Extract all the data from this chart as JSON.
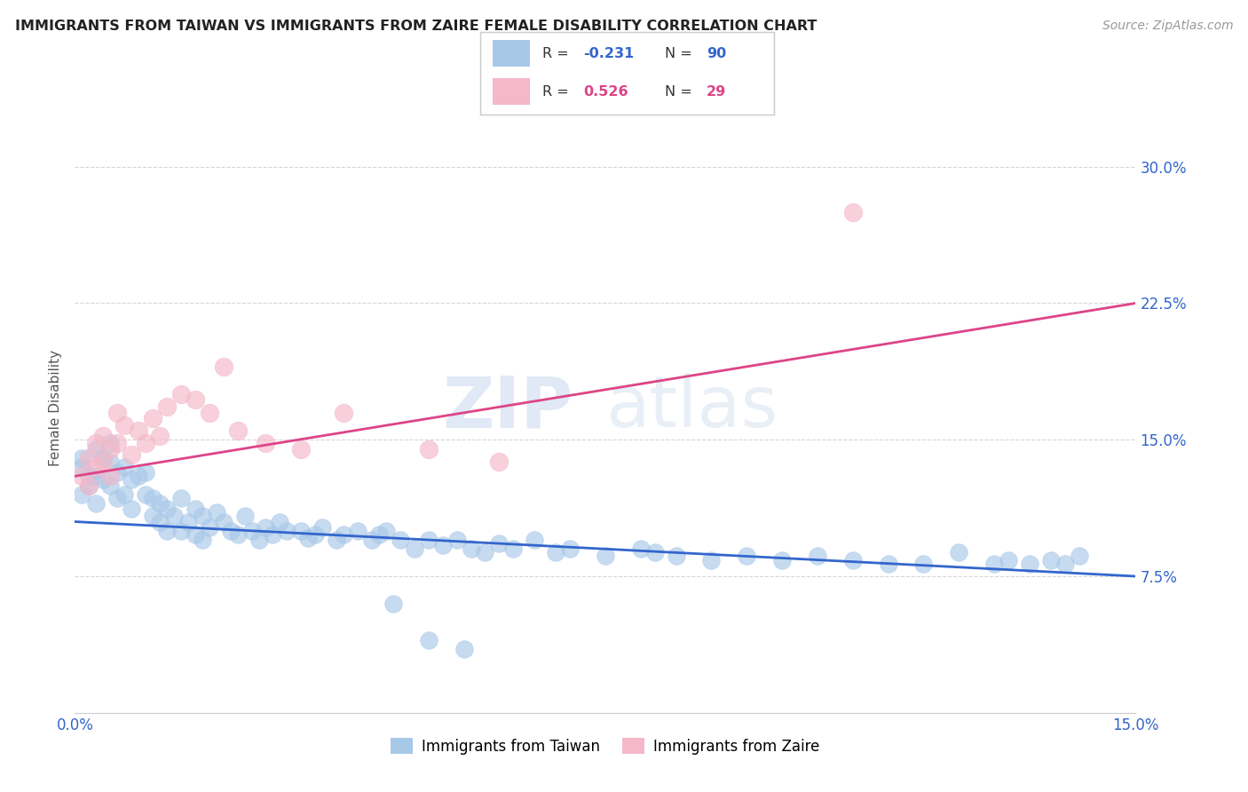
{
  "title": "IMMIGRANTS FROM TAIWAN VS IMMIGRANTS FROM ZAIRE FEMALE DISABILITY CORRELATION CHART",
  "source": "Source: ZipAtlas.com",
  "ylabel": "Female Disability",
  "yticks_labels": [
    "7.5%",
    "15.0%",
    "22.5%",
    "30.0%"
  ],
  "ytick_vals": [
    0.075,
    0.15,
    0.225,
    0.3
  ],
  "xrange": [
    0.0,
    0.15
  ],
  "yrange": [
    0.0,
    0.335
  ],
  "taiwan_color": "#a8c8e8",
  "zaire_color": "#f4b8c8",
  "taiwan_line_color": "#3366cc",
  "zaire_line_color": "#dd4488",
  "taiwan_R": -0.231,
  "taiwan_N": 90,
  "zaire_R": 0.526,
  "zaire_N": 29,
  "taiwan_line_x0": 0.0,
  "taiwan_line_y0": 0.105,
  "taiwan_line_x1": 0.15,
  "taiwan_line_y1": 0.075,
  "zaire_line_x0": 0.0,
  "zaire_line_y0": 0.13,
  "zaire_line_x1": 0.15,
  "zaire_line_y1": 0.225,
  "taiwan_scatter_x": [
    0.001,
    0.001,
    0.001,
    0.002,
    0.002,
    0.003,
    0.003,
    0.003,
    0.004,
    0.004,
    0.005,
    0.005,
    0.005,
    0.006,
    0.006,
    0.007,
    0.007,
    0.008,
    0.008,
    0.009,
    0.01,
    0.01,
    0.011,
    0.011,
    0.012,
    0.012,
    0.013,
    0.013,
    0.014,
    0.015,
    0.015,
    0.016,
    0.017,
    0.017,
    0.018,
    0.018,
    0.019,
    0.02,
    0.021,
    0.022,
    0.023,
    0.024,
    0.025,
    0.026,
    0.027,
    0.028,
    0.029,
    0.03,
    0.032,
    0.033,
    0.034,
    0.035,
    0.037,
    0.038,
    0.04,
    0.042,
    0.043,
    0.044,
    0.046,
    0.048,
    0.05,
    0.052,
    0.054,
    0.056,
    0.058,
    0.06,
    0.062,
    0.065,
    0.068,
    0.07,
    0.075,
    0.08,
    0.082,
    0.085,
    0.09,
    0.095,
    0.1,
    0.105,
    0.11,
    0.115,
    0.12,
    0.125,
    0.13,
    0.132,
    0.135,
    0.138,
    0.14,
    0.142,
    0.045,
    0.05,
    0.055
  ],
  "taiwan_scatter_y": [
    0.14,
    0.12,
    0.135,
    0.13,
    0.125,
    0.145,
    0.13,
    0.115,
    0.14,
    0.128,
    0.138,
    0.125,
    0.148,
    0.132,
    0.118,
    0.135,
    0.12,
    0.128,
    0.112,
    0.13,
    0.12,
    0.132,
    0.118,
    0.108,
    0.115,
    0.105,
    0.112,
    0.1,
    0.108,
    0.118,
    0.1,
    0.105,
    0.112,
    0.098,
    0.108,
    0.095,
    0.102,
    0.11,
    0.105,
    0.1,
    0.098,
    0.108,
    0.1,
    0.095,
    0.102,
    0.098,
    0.105,
    0.1,
    0.1,
    0.096,
    0.098,
    0.102,
    0.095,
    0.098,
    0.1,
    0.095,
    0.098,
    0.1,
    0.095,
    0.09,
    0.095,
    0.092,
    0.095,
    0.09,
    0.088,
    0.093,
    0.09,
    0.095,
    0.088,
    0.09,
    0.086,
    0.09,
    0.088,
    0.086,
    0.084,
    0.086,
    0.084,
    0.086,
    0.084,
    0.082,
    0.082,
    0.088,
    0.082,
    0.084,
    0.082,
    0.084,
    0.082,
    0.086,
    0.06,
    0.04,
    0.035
  ],
  "zaire_scatter_x": [
    0.001,
    0.002,
    0.002,
    0.003,
    0.003,
    0.004,
    0.004,
    0.005,
    0.005,
    0.006,
    0.006,
    0.007,
    0.008,
    0.009,
    0.01,
    0.011,
    0.012,
    0.013,
    0.015,
    0.017,
    0.019,
    0.021,
    0.023,
    0.027,
    0.032,
    0.038,
    0.05,
    0.06,
    0.11
  ],
  "zaire_scatter_y": [
    0.13,
    0.14,
    0.125,
    0.148,
    0.135,
    0.152,
    0.138,
    0.145,
    0.13,
    0.165,
    0.148,
    0.158,
    0.142,
    0.155,
    0.148,
    0.162,
    0.152,
    0.168,
    0.175,
    0.172,
    0.165,
    0.19,
    0.155,
    0.148,
    0.145,
    0.165,
    0.145,
    0.138,
    0.275
  ],
  "watermark_zip": "ZIP",
  "watermark_atlas": "atlas",
  "background_color": "#ffffff",
  "grid_color": "#cccccc",
  "legend_taiwan_label": "Immigrants from Taiwan",
  "legend_zaire_label": "Immigrants from Zaire"
}
